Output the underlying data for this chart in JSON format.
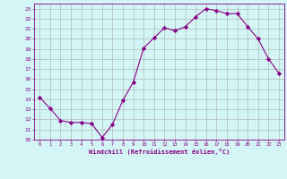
{
  "x": [
    0,
    1,
    2,
    3,
    4,
    5,
    6,
    7,
    8,
    9,
    10,
    11,
    12,
    13,
    14,
    15,
    16,
    17,
    18,
    19,
    20,
    21,
    22,
    23
  ],
  "y": [
    14.2,
    13.1,
    11.9,
    11.7,
    11.7,
    11.6,
    10.2,
    11.5,
    13.9,
    15.7,
    19.1,
    20.1,
    21.1,
    20.8,
    21.2,
    22.2,
    23.0,
    22.8,
    22.5,
    22.5,
    21.2,
    20.0,
    18.0,
    16.6
  ],
  "line_color": "#880088",
  "marker": "D",
  "marker_size": 2.2,
  "bg_color": "#d4f5f5",
  "grid_color": "#aaaaaa",
  "xlim": [
    -0.5,
    23.5
  ],
  "ylim": [
    10,
    23.5
  ],
  "yticks": [
    10,
    11,
    12,
    13,
    14,
    15,
    16,
    17,
    18,
    19,
    20,
    21,
    22,
    23
  ],
  "xticks": [
    0,
    1,
    2,
    3,
    4,
    5,
    6,
    7,
    8,
    9,
    10,
    11,
    12,
    13,
    14,
    15,
    16,
    17,
    18,
    19,
    20,
    21,
    22,
    23
  ],
  "xlabel": "Windchill (Refroidissement éolien,°C)",
  "tick_color": "#880088",
  "label_color": "#880088",
  "spine_color": "#880088"
}
